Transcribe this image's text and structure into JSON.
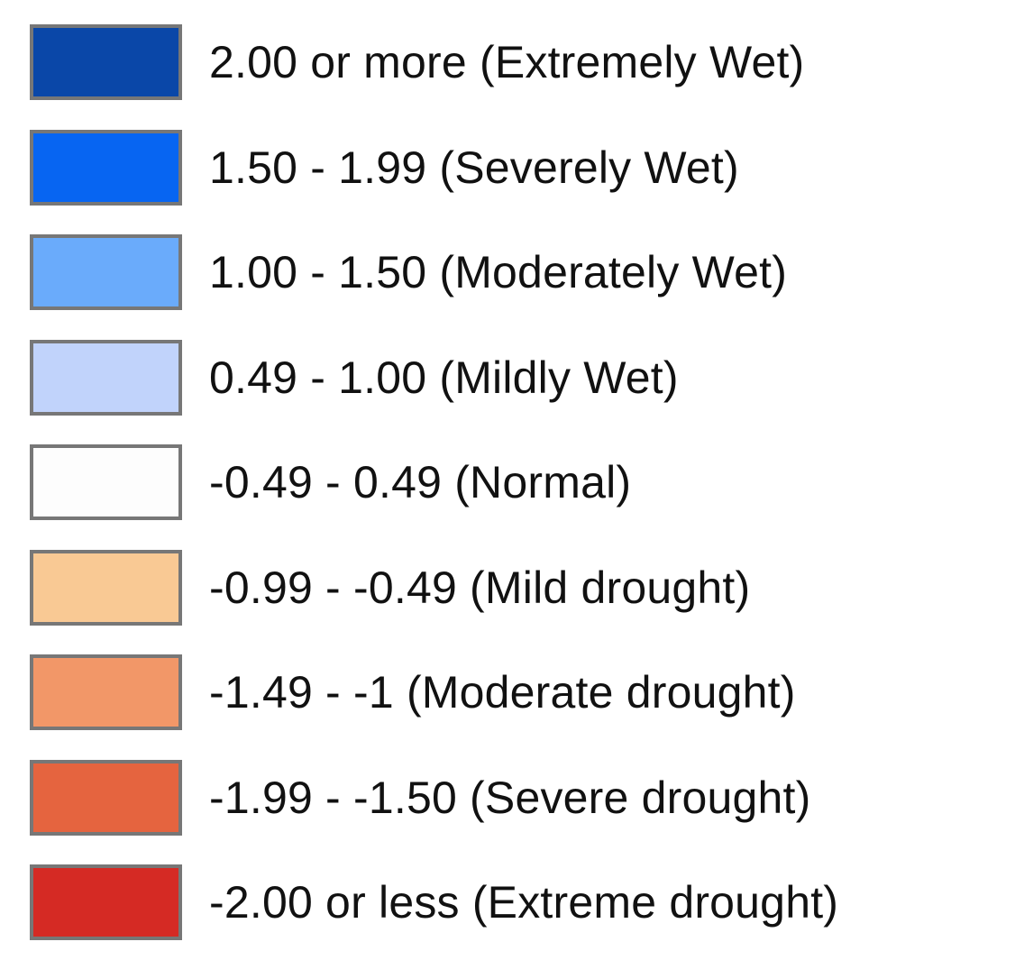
{
  "legend": {
    "items": [
      {
        "label": "2.00 or more (Extremely Wet)",
        "color": "#0a47a8"
      },
      {
        "label": "1.50 - 1.99 (Severely Wet)",
        "color": "#0765f2"
      },
      {
        "label": "1.00 - 1.50 (Moderately Wet)",
        "color": "#6aabfb"
      },
      {
        "label": "0.49 - 1.00 (Mildly Wet)",
        "color": "#c1d3fb"
      },
      {
        "label": "-0.49 - 0.49 (Normal)",
        "color": "#fdfdfd"
      },
      {
        "label": "-0.99 - -0.49 (Mild drought)",
        "color": "#f9c994"
      },
      {
        "label": "-1.49 - -1 (Moderate drought)",
        "color": "#f29768"
      },
      {
        "label": "-1.99 - -1.50 (Severe drought)",
        "color": "#e5643f"
      },
      {
        "label": "-2.00 or less (Extreme drought)",
        "color": "#d52a24"
      }
    ]
  }
}
